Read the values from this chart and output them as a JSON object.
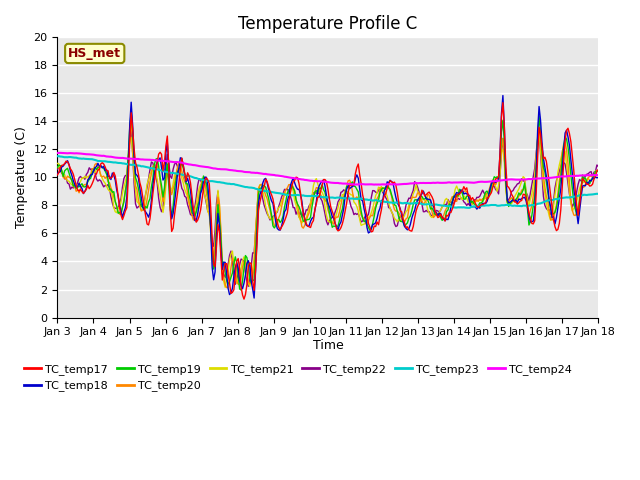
{
  "title": "Temperature Profile C",
  "xlabel": "Time",
  "ylabel": "Temperature (C)",
  "ylim": [
    0,
    20
  ],
  "y_ticks": [
    0,
    2,
    4,
    6,
    8,
    10,
    12,
    14,
    16,
    18,
    20
  ],
  "x_tick_labels": [
    "Jan 3",
    "Jan 4",
    "Jan 5",
    "Jan 6",
    "Jan 7",
    "Jan 8",
    "Jan 9",
    "Jan 10",
    "Jan 11",
    "Jan 12",
    "Jan 13",
    "Jan 14",
    "Jan 15",
    "Jan 16",
    "Jan 17",
    "Jan 18"
  ],
  "annotation_text": "HS_met",
  "annotation_color": "#8B0000",
  "annotation_bg": "#FFFFCC",
  "annotation_border": "#8B8B00",
  "series_colors": {
    "TC_temp17": "#FF0000",
    "TC_temp18": "#0000CC",
    "TC_temp19": "#00CC00",
    "TC_temp20": "#FF8800",
    "TC_temp21": "#DDDD00",
    "TC_temp22": "#880088",
    "TC_temp23": "#00CCCC",
    "TC_temp24": "#FF00FF"
  },
  "bg_color": "#E8E8E8",
  "grid_color": "#FFFFFF",
  "title_fontsize": 12,
  "axis_fontsize": 9,
  "tick_fontsize": 8,
  "legend_fontsize": 8
}
